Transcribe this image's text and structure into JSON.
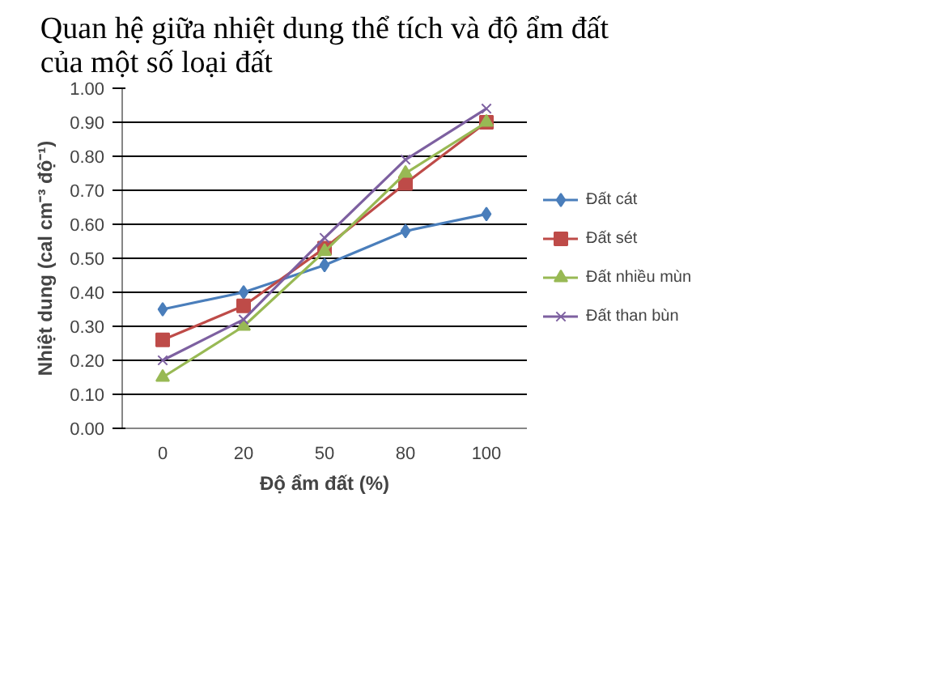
{
  "chart_data": {
    "type": "line",
    "title": "Quan hệ giữa nhiệt dung thể tích và độ ẩm đất\ncủa một số loại đất",
    "xlabel": "Độ ẩm đất (%)",
    "ylabel": "Nhiệt dung (cal cm⁻³ độ⁻¹)",
    "categories": [
      "0",
      "20",
      "50",
      "80",
      "100"
    ],
    "series": [
      {
        "name": "Đất cát",
        "color": "#4a7ebb",
        "marker": "diamond",
        "values": [
          0.35,
          0.4,
          0.48,
          0.58,
          0.63
        ]
      },
      {
        "name": "Đất sét",
        "color": "#be4b48",
        "marker": "square",
        "values": [
          0.26,
          0.36,
          0.53,
          0.72,
          0.9
        ]
      },
      {
        "name": "Đất nhiều mùn",
        "color": "#98b954",
        "marker": "triangle",
        "values": [
          0.15,
          0.3,
          0.52,
          0.75,
          0.9
        ]
      },
      {
        "name": "Đất than bùn",
        "color": "#7d60a0",
        "marker": "cross",
        "values": [
          0.2,
          0.32,
          0.56,
          0.79,
          0.94
        ]
      }
    ],
    "ylim": [
      0,
      1
    ],
    "yticks": [
      {
        "value": 0,
        "label": "0.00"
      },
      {
        "value": 0.1,
        "label": "0.10"
      },
      {
        "value": 0.2,
        "label": "0.20"
      },
      {
        "value": 0.3,
        "label": "0.30"
      },
      {
        "value": 0.4,
        "label": "0.40"
      },
      {
        "value": 0.5,
        "label": "0.50"
      },
      {
        "value": 0.6,
        "label": "0.60"
      },
      {
        "value": 0.7,
        "label": "0.70"
      },
      {
        "value": 0.8,
        "label": "0.80"
      },
      {
        "value": 0.9,
        "label": "0.90"
      },
      {
        "value": 1,
        "label": "1.00"
      }
    ],
    "grid": "y",
    "legend": "right"
  }
}
